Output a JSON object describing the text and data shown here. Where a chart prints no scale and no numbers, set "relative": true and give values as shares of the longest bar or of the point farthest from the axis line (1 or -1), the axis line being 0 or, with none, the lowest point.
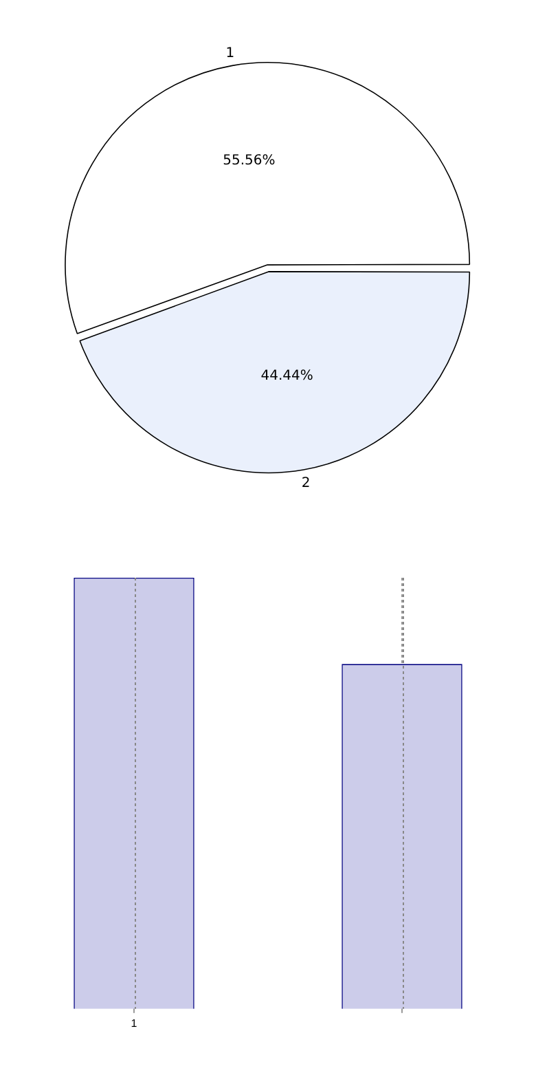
{
  "chart_data": [
    {
      "type": "pie",
      "categories": [
        "1",
        "2"
      ],
      "values": [
        55.56,
        44.44
      ],
      "colors": [
        "#ffffff",
        "#eaf0fc"
      ],
      "value_labels": [
        "55.56%",
        "44.44%"
      ]
    },
    {
      "type": "bar",
      "categories": [
        "1",
        null
      ],
      "values": [
        1,
        0.8
      ],
      "color": "#ccccea",
      "relative": true,
      "grid": "x",
      "legend": false
    }
  ]
}
